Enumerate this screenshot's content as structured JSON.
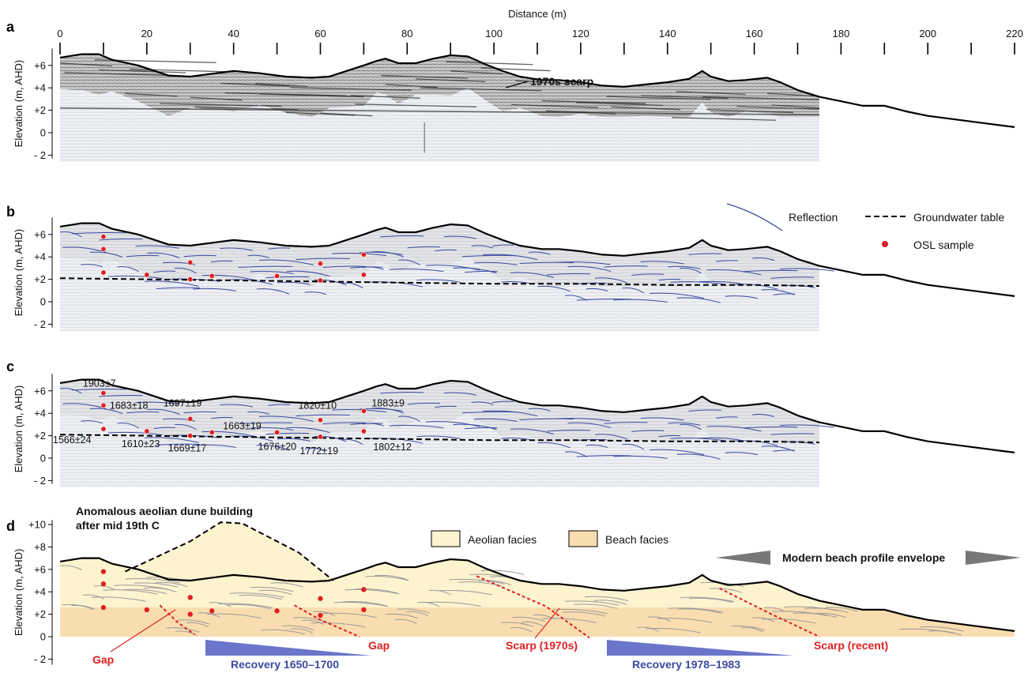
{
  "figure": {
    "x_axis": {
      "label": "Distance (m)",
      "ticks": [
        0,
        20,
        40,
        60,
        80,
        100,
        120,
        140,
        160,
        180,
        200,
        220
      ],
      "range": [
        0,
        220
      ]
    },
    "y_axis": {
      "label": "Elevation (m, AHD)",
      "ticks_abc": [
        "+6",
        "+4",
        "+2",
        "0",
        "- 2"
      ],
      "ticks_d": [
        "+10",
        "+8",
        "+6",
        "+4",
        "+2",
        "0",
        "- 2"
      ]
    },
    "panels": {
      "a": {
        "letter": "a",
        "annotation": "1970s scarp"
      },
      "b": {
        "letter": "b",
        "legend": {
          "reflection": "Reflection",
          "groundwater": "Groundwater table",
          "osl": "OSL sample"
        }
      },
      "c": {
        "letter": "c",
        "ages": [
          {
            "label": "1903±7",
            "x": 10,
            "y": 5.8
          },
          {
            "label": "1683±18",
            "x": 10,
            "y": 4.7
          },
          {
            "label": "1697±19",
            "x": 30,
            "y": 3.5
          },
          {
            "label": "1663±19",
            "x": 35,
            "y": 2.3
          },
          {
            "label": "1820±10",
            "x": 60,
            "y": 3.4
          },
          {
            "label": "1883±9",
            "x": 70,
            "y": 4.2
          },
          {
            "label": "1566±24",
            "x": 10,
            "y": 2.6
          },
          {
            "label": "1610±23",
            "x": 20,
            "y": 2.4
          },
          {
            "label": "1669±17",
            "x": 30,
            "y": 2.0
          },
          {
            "label": "1676±20",
            "x": 50,
            "y": 2.3
          },
          {
            "label": "1772±19",
            "x": 60,
            "y": 1.9
          },
          {
            "label": "1802±12",
            "x": 70,
            "y": 2.4
          }
        ]
      },
      "d": {
        "letter": "d",
        "dune_title_line1": "Anomalous aeolian dune building",
        "dune_title_line2": "after mid 19th C",
        "legend_aeolian": "Aeolian facies",
        "legend_beach": "Beach facies",
        "modern_envelope": "Modern beach profile envelope",
        "gap1": "Gap",
        "gap2": "Gap",
        "scarp1970": "Scarp (1970s)",
        "scarp_recent": "Scarp (recent)",
        "recovery1": "Recovery 1650–1700",
        "recovery2": "Recovery 1978–1983"
      }
    },
    "colors": {
      "reflection": "#3a4aa0",
      "osl": "#e02020",
      "aeolian": "#fdf3cf",
      "beach": "#f9ddb0",
      "recovery": "#6b75c9",
      "envelope": "#777777"
    },
    "samples": [
      {
        "x": 10,
        "y": 5.8
      },
      {
        "x": 10,
        "y": 4.7
      },
      {
        "x": 10,
        "y": 2.6
      },
      {
        "x": 20,
        "y": 2.4
      },
      {
        "x": 30,
        "y": 3.5
      },
      {
        "x": 30,
        "y": 2.0
      },
      {
        "x": 35,
        "y": 2.3
      },
      {
        "x": 50,
        "y": 2.3
      },
      {
        "x": 60,
        "y": 3.4
      },
      {
        "x": 60,
        "y": 1.9
      },
      {
        "x": 70,
        "y": 4.2
      },
      {
        "x": 70,
        "y": 2.4
      }
    ],
    "surface_profile": [
      [
        0,
        6.7
      ],
      [
        5,
        7.0
      ],
      [
        9,
        7.0
      ],
      [
        12,
        6.5
      ],
      [
        18,
        6.0
      ],
      [
        25,
        5.1
      ],
      [
        30,
        5.0
      ],
      [
        36,
        5.3
      ],
      [
        40,
        5.5
      ],
      [
        46,
        5.3
      ],
      [
        52,
        5.0
      ],
      [
        58,
        4.9
      ],
      [
        62,
        5.0
      ],
      [
        66,
        5.5
      ],
      [
        70,
        6.0
      ],
      [
        73,
        6.4
      ],
      [
        75,
        6.6
      ],
      [
        78,
        6.2
      ],
      [
        82,
        6.2
      ],
      [
        86,
        6.6
      ],
      [
        90,
        6.9
      ],
      [
        94,
        6.8
      ],
      [
        98,
        6.1
      ],
      [
        102,
        5.5
      ],
      [
        106,
        5.0
      ],
      [
        111,
        4.7
      ],
      [
        115,
        4.7
      ],
      [
        120,
        4.5
      ],
      [
        125,
        4.2
      ],
      [
        130,
        4.1
      ],
      [
        135,
        4.3
      ],
      [
        140,
        4.5
      ],
      [
        145,
        4.8
      ],
      [
        148,
        5.5
      ],
      [
        150,
        5.0
      ],
      [
        154,
        4.6
      ],
      [
        158,
        4.7
      ],
      [
        163,
        4.9
      ],
      [
        166,
        4.5
      ],
      [
        170,
        3.8
      ],
      [
        175,
        3.2
      ],
      [
        180,
        2.8
      ],
      [
        185,
        2.4
      ],
      [
        190,
        2.4
      ],
      [
        195,
        1.9
      ],
      [
        200,
        1.5
      ],
      [
        210,
        1.0
      ],
      [
        220,
        0.5
      ]
    ],
    "groundwater_profile": [
      [
        0,
        2.1
      ],
      [
        20,
        2.0
      ],
      [
        40,
        1.9
      ],
      [
        60,
        1.8
      ],
      [
        80,
        1.7
      ],
      [
        100,
        1.6
      ],
      [
        120,
        1.6
      ],
      [
        140,
        1.5
      ],
      [
        160,
        1.5
      ],
      [
        175,
        1.4
      ]
    ],
    "dune_profile": [
      [
        15,
        5.8
      ],
      [
        30,
        8.5
      ],
      [
        37,
        10.2
      ],
      [
        42,
        10.1
      ],
      [
        55,
        7.5
      ],
      [
        63,
        5.0
      ]
    ]
  }
}
